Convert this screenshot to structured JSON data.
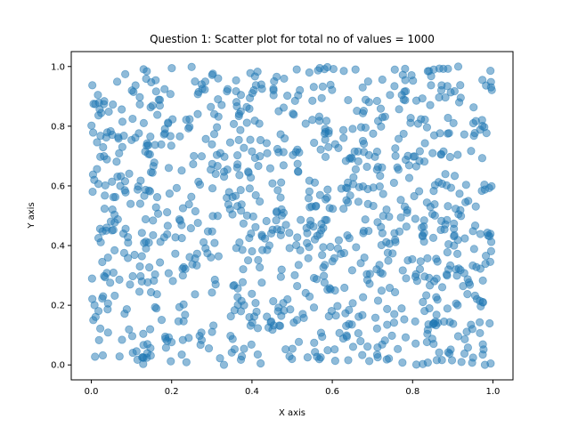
{
  "chart_data": {
    "type": "scatter",
    "title": "Question 1: Scatter plot for total no of values = 1000",
    "xlabel": "X axis",
    "ylabel": "Y axis",
    "xlim": [
      -0.05,
      1.05
    ],
    "ylim": [
      -0.05,
      1.05
    ],
    "x_ticks": [
      "0.0",
      "0.2",
      "0.4",
      "0.6",
      "0.8",
      "1.0"
    ],
    "y_ticks": [
      "0.0",
      "0.2",
      "0.4",
      "0.6",
      "0.8",
      "1.0"
    ],
    "x_tick_values": [
      0.0,
      0.2,
      0.4,
      0.6,
      0.8,
      1.0
    ],
    "y_tick_values": [
      0.0,
      0.2,
      0.4,
      0.6,
      0.8,
      1.0
    ],
    "point_count": 1000,
    "point_distribution": "uniform random over [0,1] x [0,1]",
    "marker_color": "#1f77b4",
    "marker_alpha": 0.5,
    "grid": false,
    "legend": "none"
  }
}
